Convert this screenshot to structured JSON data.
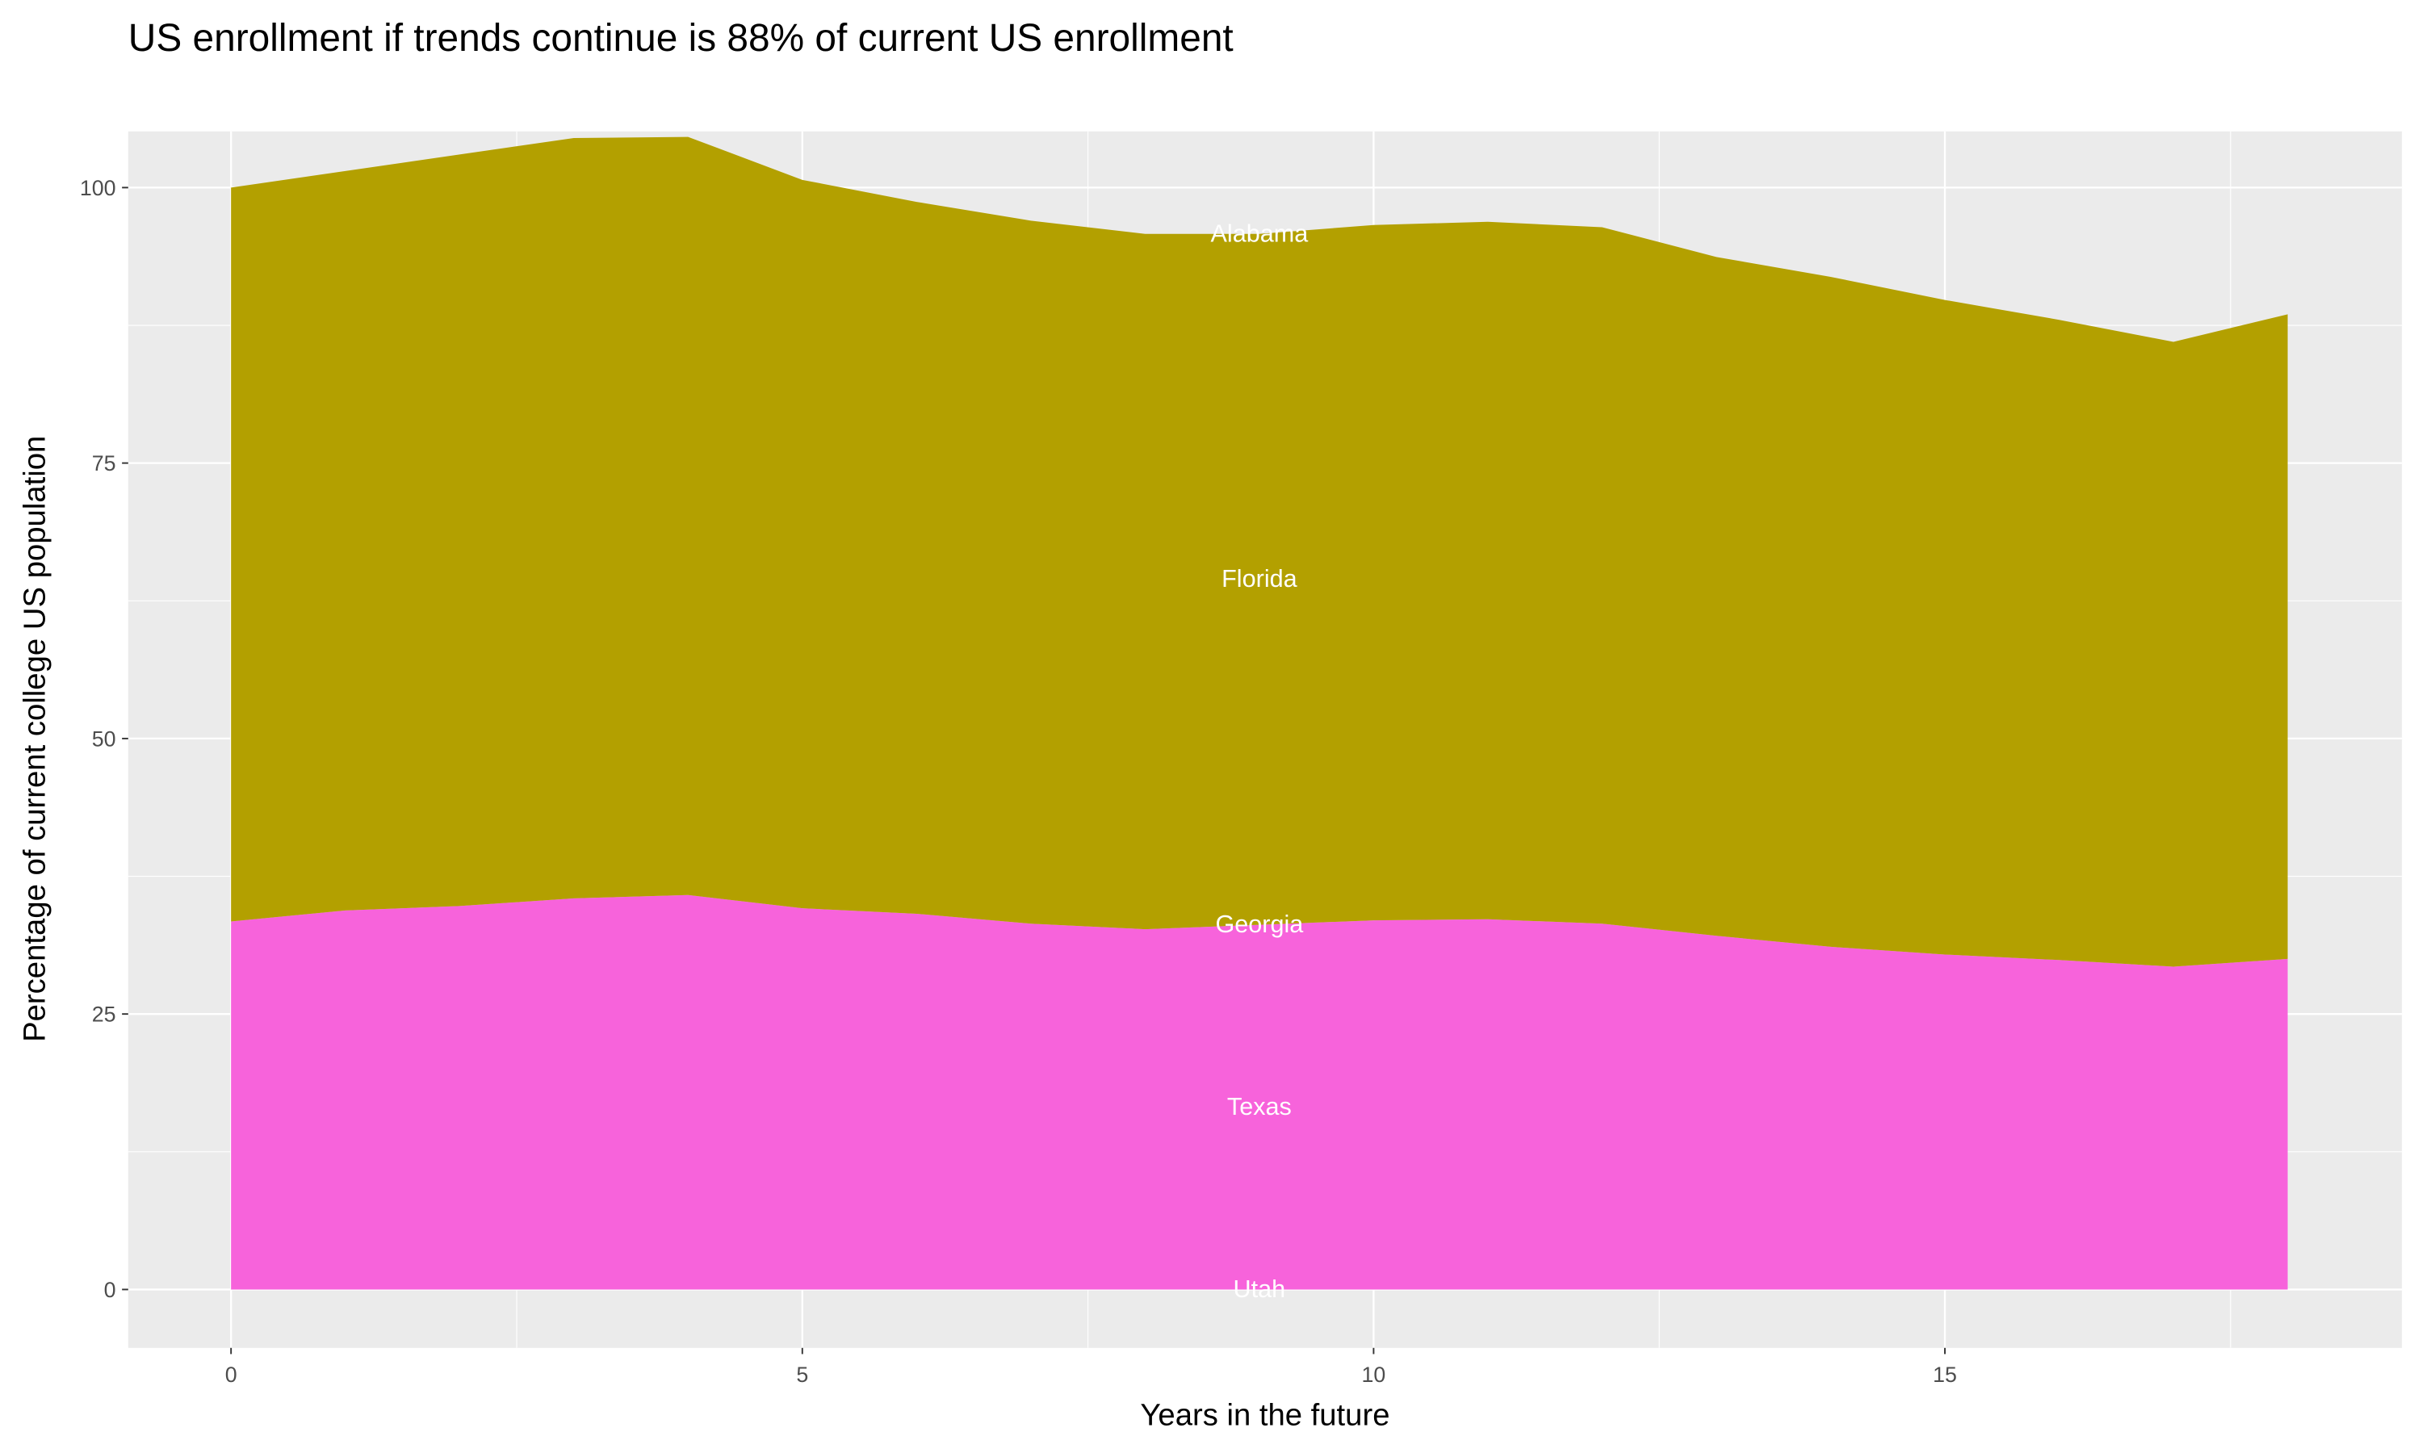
{
  "chart_data": {
    "type": "area",
    "stacked": true,
    "title": "US enrollment if trends continue is 88% of current US enrollment",
    "xlabel": "Years in the future",
    "ylabel": "Percentage of current college US population",
    "xlim": [
      -0.9,
      19.0
    ],
    "ylim": [
      -5.3,
      105.1
    ],
    "x_ticks": [
      0,
      5,
      10,
      15
    ],
    "y_ticks": [
      0,
      25,
      50,
      75,
      100
    ],
    "grid": true,
    "legend": "none",
    "x": [
      0,
      1,
      2,
      3,
      4,
      5,
      6,
      7,
      8,
      9,
      10,
      11,
      12,
      13,
      14,
      15,
      16,
      17,
      18
    ],
    "series": [
      {
        "name": "Utah",
        "color": "#F763DB",
        "values": [
          0,
          0,
          0,
          0,
          0,
          0,
          0,
          0,
          0,
          0,
          0,
          0,
          0,
          0,
          0,
          0,
          0,
          0,
          0
        ]
      },
      {
        "name": "Texas",
        "color": "#F763DB",
        "values": [
          33.4,
          34.4,
          34.8,
          35.5,
          35.8,
          34.6,
          34.1,
          33.2,
          32.7,
          33.1,
          33.5,
          33.6,
          33.2,
          32.1,
          31.1,
          30.4,
          29.9,
          29.3,
          30.0
        ]
      },
      {
        "name": "Georgia",
        "color": "#F763DB",
        "values": [
          0,
          0,
          0,
          0,
          0,
          0,
          0,
          0,
          0,
          0,
          0,
          0,
          0,
          0,
          0,
          0,
          0,
          0,
          0
        ]
      },
      {
        "name": "Florida",
        "color": "#B3A000",
        "values": [
          66.6,
          67.1,
          68.2,
          69.0,
          68.8,
          66.1,
          64.6,
          63.8,
          63.1,
          62.7,
          63.1,
          63.3,
          63.2,
          61.6,
          60.8,
          59.4,
          58.1,
          56.7,
          58.5
        ]
      },
      {
        "name": "Alabama",
        "color": "#B3A000",
        "values": [
          0,
          0,
          0,
          0,
          0,
          0,
          0,
          0,
          0,
          0,
          0,
          0,
          0,
          0,
          0,
          0,
          0,
          0,
          0
        ]
      }
    ],
    "label_x": 9,
    "label_color": "#FFFFFF",
    "panel_background": "#EBEBEB",
    "grid_color": "#FFFFFF"
  }
}
